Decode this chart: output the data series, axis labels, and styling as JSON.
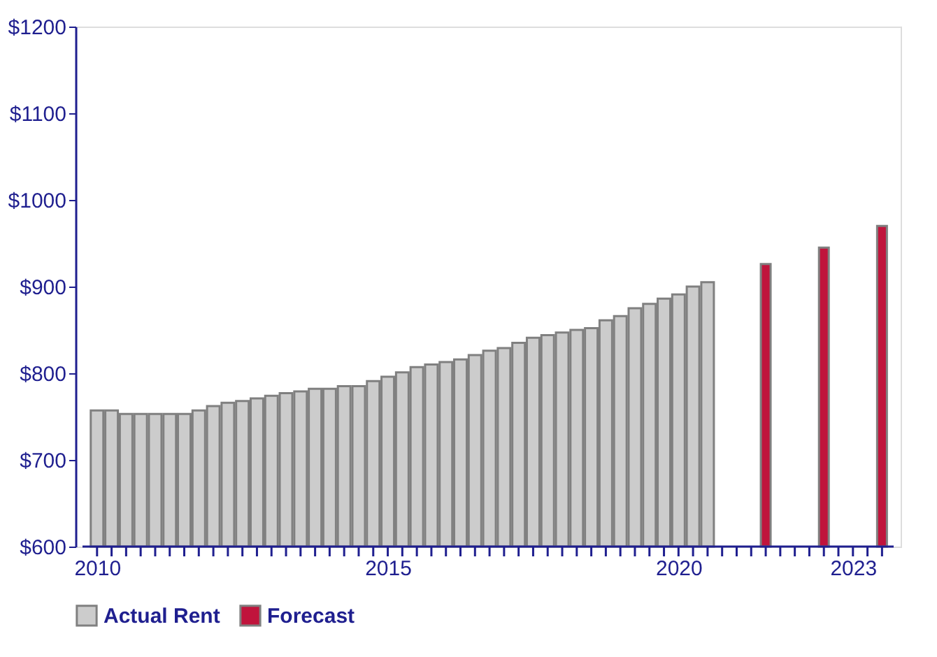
{
  "chart_data": {
    "type": "bar",
    "series": [
      {
        "name": "Actual Rent",
        "color": "#cccccc",
        "x": [
          2010,
          2010.25,
          2010.5,
          2010.75,
          2011,
          2011.25,
          2011.5,
          2011.75,
          2012,
          2012.25,
          2012.5,
          2012.75,
          2013,
          2013.25,
          2013.5,
          2013.75,
          2014,
          2014.25,
          2014.5,
          2014.75,
          2015,
          2015.25,
          2015.5,
          2015.75,
          2016,
          2016.25,
          2016.5,
          2016.75,
          2017,
          2017.25,
          2017.5,
          2017.75,
          2018,
          2018.25,
          2018.5,
          2018.75,
          2019,
          2019.25,
          2019.5,
          2019.75,
          2020,
          2020.25,
          2020.5
        ],
        "values": [
          757,
          757,
          753,
          753,
          753,
          753,
          753,
          757,
          762,
          766,
          768,
          771,
          774,
          777,
          779,
          782,
          782,
          785,
          785,
          791,
          796,
          801,
          807,
          810,
          813,
          816,
          821,
          826,
          829,
          835,
          841,
          844,
          847,
          850,
          852,
          861,
          866,
          875,
          880,
          886,
          891,
          900,
          905
        ]
      },
      {
        "name": "Forecast",
        "color": "#c0143c",
        "x": [
          2021.5,
          2022.5,
          2023.5
        ],
        "values": [
          926,
          945,
          970
        ]
      }
    ],
    "xlim": [
      2009.75,
      2023.7
    ],
    "xticks": [
      2010,
      {
        "value": 2010.25,
        "label": null
      },
      {
        "value": 2010.5,
        "label": null
      },
      {
        "value": 2010.75,
        "label": null
      },
      {
        "value": 2011,
        "label": null
      },
      {
        "value": 2011.25,
        "label": null
      },
      {
        "value": 2011.5,
        "label": null
      },
      {
        "value": 2011.75,
        "label": null
      },
      {
        "value": 2012,
        "label": null
      },
      {
        "value": 2012.25,
        "label": null
      },
      {
        "value": 2012.5,
        "label": null
      },
      {
        "value": 2012.75,
        "label": null
      },
      {
        "value": 2013,
        "label": null
      },
      {
        "value": 2013.25,
        "label": null
      },
      {
        "value": 2013.5,
        "label": null
      },
      {
        "value": 2013.75,
        "label": null
      },
      {
        "value": 2014,
        "label": null
      },
      {
        "value": 2014.25,
        "label": null
      },
      {
        "value": 2014.5,
        "label": null
      },
      {
        "value": 2014.75,
        "label": null
      },
      2015,
      {
        "value": 2015.25,
        "label": null
      },
      {
        "value": 2015.5,
        "label": null
      },
      {
        "value": 2015.75,
        "label": null
      },
      {
        "value": 2016,
        "label": null
      },
      {
        "value": 2016.25,
        "label": null
      },
      {
        "value": 2016.5,
        "label": null
      },
      {
        "value": 2016.75,
        "label": null
      },
      {
        "value": 2017,
        "label": null
      },
      {
        "value": 2017.25,
        "label": null
      },
      {
        "value": 2017.5,
        "label": null
      },
      {
        "value": 2017.75,
        "label": null
      },
      {
        "value": 2018,
        "label": null
      },
      {
        "value": 2018.25,
        "label": null
      },
      {
        "value": 2018.5,
        "label": null
      },
      {
        "value": 2018.75,
        "label": null
      },
      {
        "value": 2019,
        "label": null
      },
      {
        "value": 2019.25,
        "label": null
      },
      {
        "value": 2019.5,
        "label": null
      },
      {
        "value": 2019.75,
        "label": null
      },
      2020,
      {
        "value": 2020.25,
        "label": null
      },
      {
        "value": 2020.5,
        "label": null
      },
      {
        "value": 2020.75,
        "label": null
      },
      {
        "value": 2021,
        "label": null
      },
      {
        "value": 2021.25,
        "label": null
      },
      {
        "value": 2021.5,
        "label": null
      },
      {
        "value": 2021.75,
        "label": null
      },
      {
        "value": 2022,
        "label": null
      },
      {
        "value": 2022.25,
        "label": null
      },
      {
        "value": 2022.5,
        "label": null
      },
      {
        "value": 2022.75,
        "label": null
      },
      2023,
      {
        "value": 2023.25,
        "label": null
      },
      {
        "value": 2023.5,
        "label": null
      }
    ],
    "ylim": [
      600,
      1200
    ],
    "yticks": [
      {
        "value": 600,
        "label": "$600"
      },
      {
        "value": 700,
        "label": "$700"
      },
      {
        "value": 800,
        "label": "$800"
      },
      {
        "value": 900,
        "label": "$900"
      },
      {
        "value": 1000,
        "label": "$1000"
      },
      {
        "value": 1100,
        "label": "$1100"
      },
      {
        "value": 1200,
        "label": "$1200"
      }
    ],
    "grid": false,
    "legend": "bottom"
  }
}
